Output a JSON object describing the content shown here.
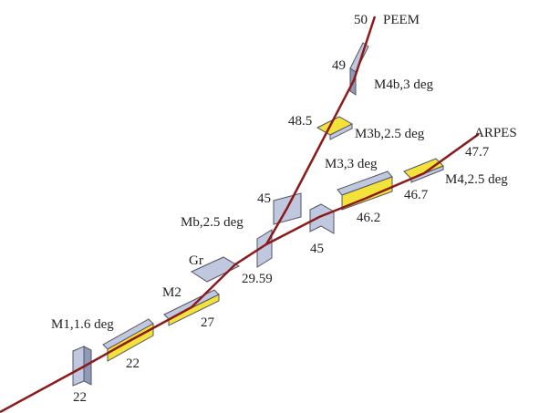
{
  "labels": [
    "22",
    "22",
    "M1,1.6 deg",
    "M2",
    "27",
    "Gr",
    "29.59",
    "Mb,2.5 deg",
    "45",
    "45",
    "46.2",
    "M3,3 deg",
    "46.7",
    "M4,2.5 deg",
    "47.7",
    "ARPES",
    "48.5",
    "M3b,2.5 deg",
    "49",
    "M4b,3 deg",
    "50",
    "PEEM"
  ]
}
